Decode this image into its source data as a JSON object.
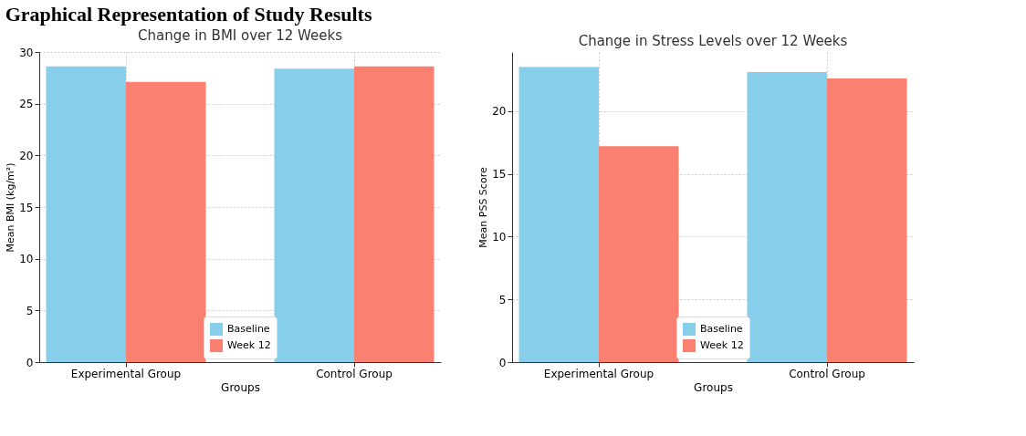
{
  "chart_data": [
    {
      "type": "bar",
      "title": "Change in BMI over 12 Weeks",
      "xlabel": "Groups",
      "ylabel": "Mean BMI (kg/m²)",
      "annotations": [
        "Graphical Representation of Study Results"
      ],
      "categories": [
        "Experimental Group",
        "Control Group"
      ],
      "series": [
        {
          "name": "Baseline",
          "color": "#87ceeb",
          "values": [
            28.6,
            28.4
          ]
        },
        {
          "name": "Week 12",
          "color": "#fa8072",
          "values": [
            27.1,
            28.6
          ]
        }
      ],
      "ylim": [
        0,
        30
      ],
      "yticks": [
        0,
        5,
        10,
        15,
        20,
        25,
        30
      ],
      "grid": true,
      "legend": "bottom"
    },
    {
      "type": "bar",
      "title": "Change in Stress Levels over 12 Weeks",
      "xlabel": "Groups",
      "ylabel": "Mean PSS Score",
      "categories": [
        "Experimental Group",
        "Control Group"
      ],
      "series": [
        {
          "name": "Baseline",
          "color": "#87ceeb",
          "values": [
            23.5,
            23.1
          ]
        },
        {
          "name": "Week 12",
          "color": "#fa8072",
          "values": [
            17.2,
            22.6
          ]
        }
      ],
      "ylim": [
        0,
        24.7
      ],
      "yticks": [
        0,
        5,
        10,
        15,
        20
      ],
      "grid": true,
      "legend": "bottom"
    }
  ]
}
